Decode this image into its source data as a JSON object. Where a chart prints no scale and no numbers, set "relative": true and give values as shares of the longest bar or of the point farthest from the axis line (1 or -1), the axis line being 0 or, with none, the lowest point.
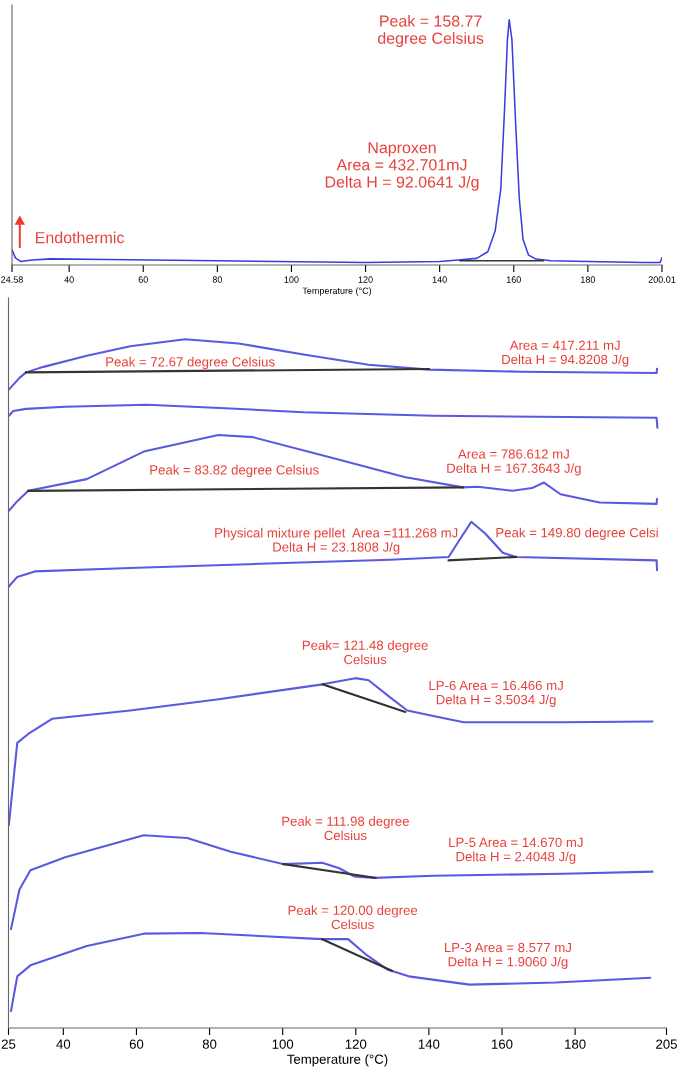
{
  "chart_data": [
    {
      "type": "line",
      "relative": true,
      "xlabel": "Temperature (°C)",
      "xlim": [
        24.58,
        200.01
      ],
      "xticks": [
        24.58,
        40,
        60,
        80,
        100,
        120,
        140,
        160,
        180,
        200.01
      ],
      "grid": false,
      "legend": false,
      "series": [
        {
          "color": "#3b3bdf",
          "x": [
            24.58,
            25.5,
            27,
            30,
            35,
            50,
            80,
            120,
            140,
            145,
            150,
            153,
            155,
            156.5,
            157.5,
            158.3,
            158.77,
            159.5,
            160.5,
            161.5,
            162.5,
            164,
            166,
            170,
            180,
            195,
            199.5,
            200.01
          ],
          "values": [
            0.062,
            0.029,
            0.014,
            0.02,
            0.025,
            0.022,
            0.017,
            0.01,
            0.014,
            0.02,
            0.027,
            0.054,
            0.14,
            0.31,
            0.63,
            0.92,
            1,
            0.92,
            0.58,
            0.27,
            0.105,
            0.04,
            0.024,
            0.017,
            0.014,
            0.01,
            0.01,
            0.03
          ]
        },
        {
          "color": "#333333",
          "x": [
            145.5,
            168
          ],
          "values": [
            0.017,
            0.017
          ]
        }
      ],
      "annotations": [
        "Peak = 158.77\ndegree Celsius",
        "Naproxen\nArea = 432.701mJ\nDelta H = 92.0641 J/g",
        "Endothermic"
      ]
    },
    {
      "type": "line",
      "relative": true,
      "xlabel": "Temperature (°C)",
      "xlim": [
        25,
        205
      ],
      "xticks": [
        25,
        40,
        60,
        80,
        100,
        120,
        140,
        160,
        180,
        205
      ],
      "grid": false,
      "legend": false,
      "series": [
        {
          "color": "#5a5ae0",
          "x": [
            25.1,
            28.0,
            29.8,
            34.6,
            46.4,
            58.3,
            73.3,
            87.9,
            105.7,
            123.5,
            140.0,
            165,
            202.3,
            202.4
          ],
          "values": [
            0.927,
            0.944,
            0.952,
            0.96,
            0.976,
            0.99,
            1,
            0.994,
            0.978,
            0.963,
            0.956,
            0.953,
            0.951,
            0.957
          ]
        },
        {
          "color": "#333333",
          "x": [
            29.8,
            140
          ],
          "values": [
            0.952,
            0.957
          ]
        },
        {
          "color": "#5a5ae0",
          "x": [
            25.1,
            26.3,
            29.8,
            40.5,
            63,
            84.2,
            105.7,
            141.2,
            202.3,
            202.5
          ],
          "values": [
            0.889,
            0.896,
            0.899,
            0.902,
            0.905,
            0.9,
            0.894,
            0.889,
            0.886,
            0.872
          ]
        },
        {
          "color": "#5a5ae0",
          "x": [
            25.1,
            27.4,
            30.4,
            46.4,
            62,
            82.4,
            91.8,
            115.5,
            133.3,
            149.3,
            153.4,
            162.9,
            168.2,
            171.5,
            176,
            186.7,
            202.3,
            202.4
          ],
          "values": [
            0.751,
            0.765,
            0.78,
            0.797,
            0.837,
            0.861,
            0.858,
            0.825,
            0.8,
            0.785,
            0.786,
            0.78,
            0.784,
            0.792,
            0.775,
            0.763,
            0.761,
            0.768
          ]
        },
        {
          "color": "#333333",
          "x": [
            30.4,
            149.3
          ],
          "values": [
            0.78,
            0.785
          ]
        },
        {
          "color": "#5a5ae0",
          "x": [
            25.1,
            27.4,
            32.2,
            58.3,
            93.8,
            129.4,
            145.4,
            148.4,
            151.6,
            155.4,
            160.2,
            163.8,
            202.3,
            202.4
          ],
          "values": [
            0.641,
            0.655,
            0.663,
            0.668,
            0.674,
            0.68,
            0.684,
            0.709,
            0.735,
            0.718,
            0.69,
            0.684,
            0.679,
            0.665
          ]
        },
        {
          "color": "#333333",
          "x": [
            145.4,
            163.8
          ],
          "values": [
            0.679,
            0.684
          ]
        },
        {
          "color": "#5a5ae0",
          "x": [
            25.1,
            27.4,
            30.4,
            36.9,
            58.3,
            82,
            110.9,
            119.9,
            123.5,
            129.4,
            134.1,
            141.2,
            149.5,
            176.7,
            201.1
          ],
          "values": [
            0.295,
            0.414,
            0.427,
            0.449,
            0.461,
            0.477,
            0.499,
            0.508,
            0.505,
            0.48,
            0.461,
            0.453,
            0.444,
            0.444,
            0.445
          ]
        },
        {
          "color": "#333333",
          "x": [
            110.9,
            133.5
          ],
          "values": [
            0.499,
            0.459
          ]
        },
        {
          "color": "#5a5ae0",
          "x": [
            25.7,
            28,
            31,
            40.5,
            62,
            73.9,
            85.8,
            100.1,
            110.8,
            115.5,
            119.6,
            125,
            141.2,
            176.7,
            201.1
          ],
          "values": [
            0.144,
            0.201,
            0.229,
            0.248,
            0.28,
            0.276,
            0.256,
            0.238,
            0.24,
            0.232,
            0.22,
            0.218,
            0.221,
            0.224,
            0.227
          ]
        },
        {
          "color": "#333333",
          "x": [
            100.1,
            125.4
          ],
          "values": [
            0.238,
            0.218
          ]
        },
        {
          "color": "#5a5ae0",
          "x": [
            25.7,
            27.4,
            31,
            46.4,
            62,
            77.6,
            110.8,
            117.9,
            122.7,
            128.6,
            134.5,
            151.1,
            174.7,
            200.5
          ],
          "values": [
            0.025,
            0.075,
            0.091,
            0.119,
            0.137,
            0.138,
            0.129,
            0.129,
            0.107,
            0.085,
            0.075,
            0.063,
            0.066,
            0.073
          ]
        },
        {
          "color": "#333333",
          "x": [
            110.8,
            129.9
          ],
          "values": [
            0.129,
            0.083
          ]
        }
      ],
      "annotations": [
        "Peak = 72.67 degree Celsius",
        "Area = 417.211 mJ\nDelta H = 94.8208 J/g",
        "Area = 786.612 mJ\nDelta H = 167.3643 J/g",
        "Peak = 83.82 degree Celsius",
        "Physical mixture pellet  Area =111.268 mJ\nDelta H = 23.1808 J/g",
        "Peak = 149.80 degree Celsi",
        "Peak= 121.48 degree\nCelsius",
        "LP-6 Area = 16.466 mJ\nDelta H = 3.5034 J/g",
        "Peak = 111.98 degree\nCelsius",
        "LP-5 Area = 14.670 mJ\nDelta H = 2.4048 J/g",
        "Peak = 120.00 degree\nCelsius",
        "LP-3 Area = 8.577 mJ\nDelta H = 1.9060 J/g"
      ]
    }
  ]
}
